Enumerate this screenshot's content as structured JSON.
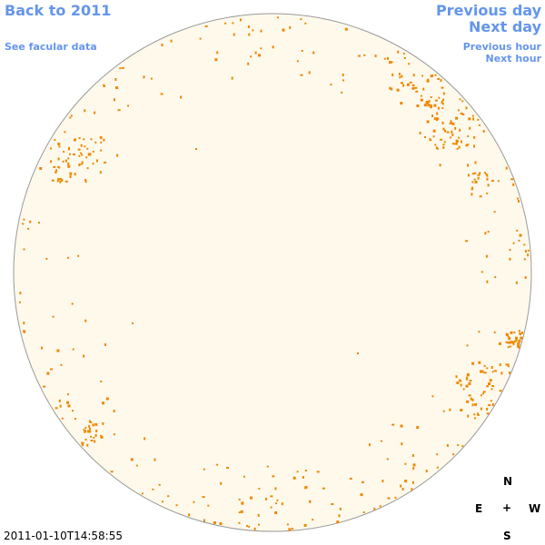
{
  "nav": {
    "back": "Back to 2011",
    "facular": "See facular data",
    "prev_day": "Previous day",
    "next_day": "Next day",
    "prev_hour": "Previous hour",
    "next_hour": "Next hour"
  },
  "compass": {
    "n": "N",
    "e": "E",
    "w": "W",
    "s": "S",
    "center": "+"
  },
  "timestamp": "2011-01-10T14:58:55",
  "colors": {
    "link": "#6495ed",
    "disk_fill": "#fff9ec",
    "disk_stroke": "#9a9a9a",
    "faculae": "#ee8800"
  }
}
